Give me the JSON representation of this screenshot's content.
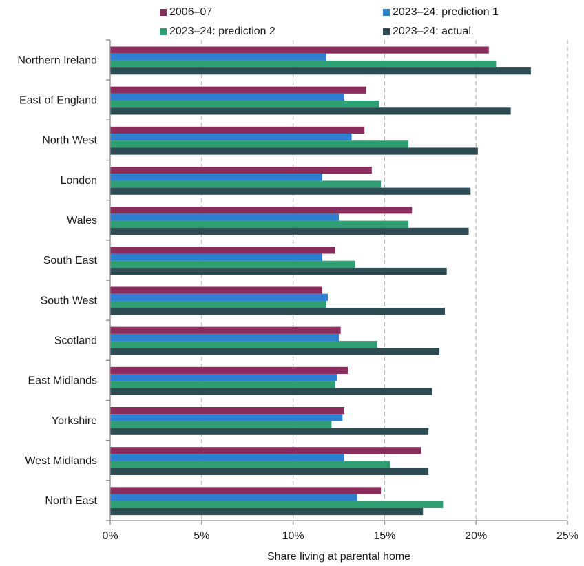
{
  "chart_data": {
    "type": "bar",
    "orientation": "horizontal",
    "title": "",
    "xlabel": "Share living at parental home",
    "ylabel": "",
    "xlim": [
      0,
      25
    ],
    "xticks": [
      0,
      5,
      10,
      15,
      20,
      25
    ],
    "xtick_labels": [
      "0%",
      "5%",
      "10%",
      "15%",
      "20%",
      "25%"
    ],
    "grid": "vertical dashed",
    "legend_position": "top",
    "categories": [
      "Northern Ireland",
      "East of England",
      "North West",
      "London",
      "Wales",
      "South East",
      "South West",
      "Scotland",
      "East Midlands",
      "Yorkshire",
      "West Midlands",
      "North East"
    ],
    "series": [
      {
        "name": "2006–07",
        "color": "#8b2d5c",
        "values": [
          20.7,
          14.0,
          13.9,
          14.3,
          16.5,
          12.3,
          11.6,
          12.6,
          13.0,
          12.8,
          17.0,
          14.8
        ]
      },
      {
        "name": "2023–24: prediction 1",
        "color": "#2e7fd1",
        "values": [
          11.8,
          12.8,
          13.2,
          11.6,
          12.5,
          11.6,
          11.9,
          12.5,
          12.4,
          12.7,
          12.8,
          13.5
        ]
      },
      {
        "name": "2023–24: prediction 2",
        "color": "#2f9e72",
        "values": [
          21.1,
          14.7,
          16.3,
          14.8,
          16.3,
          13.4,
          11.8,
          14.6,
          12.3,
          12.1,
          15.3,
          18.2
        ]
      },
      {
        "name": "2023–24: actual",
        "color": "#2c4b52",
        "values": [
          23.0,
          21.9,
          20.1,
          19.7,
          19.6,
          18.4,
          18.3,
          18.0,
          17.6,
          17.4,
          17.4,
          17.1
        ]
      }
    ]
  }
}
